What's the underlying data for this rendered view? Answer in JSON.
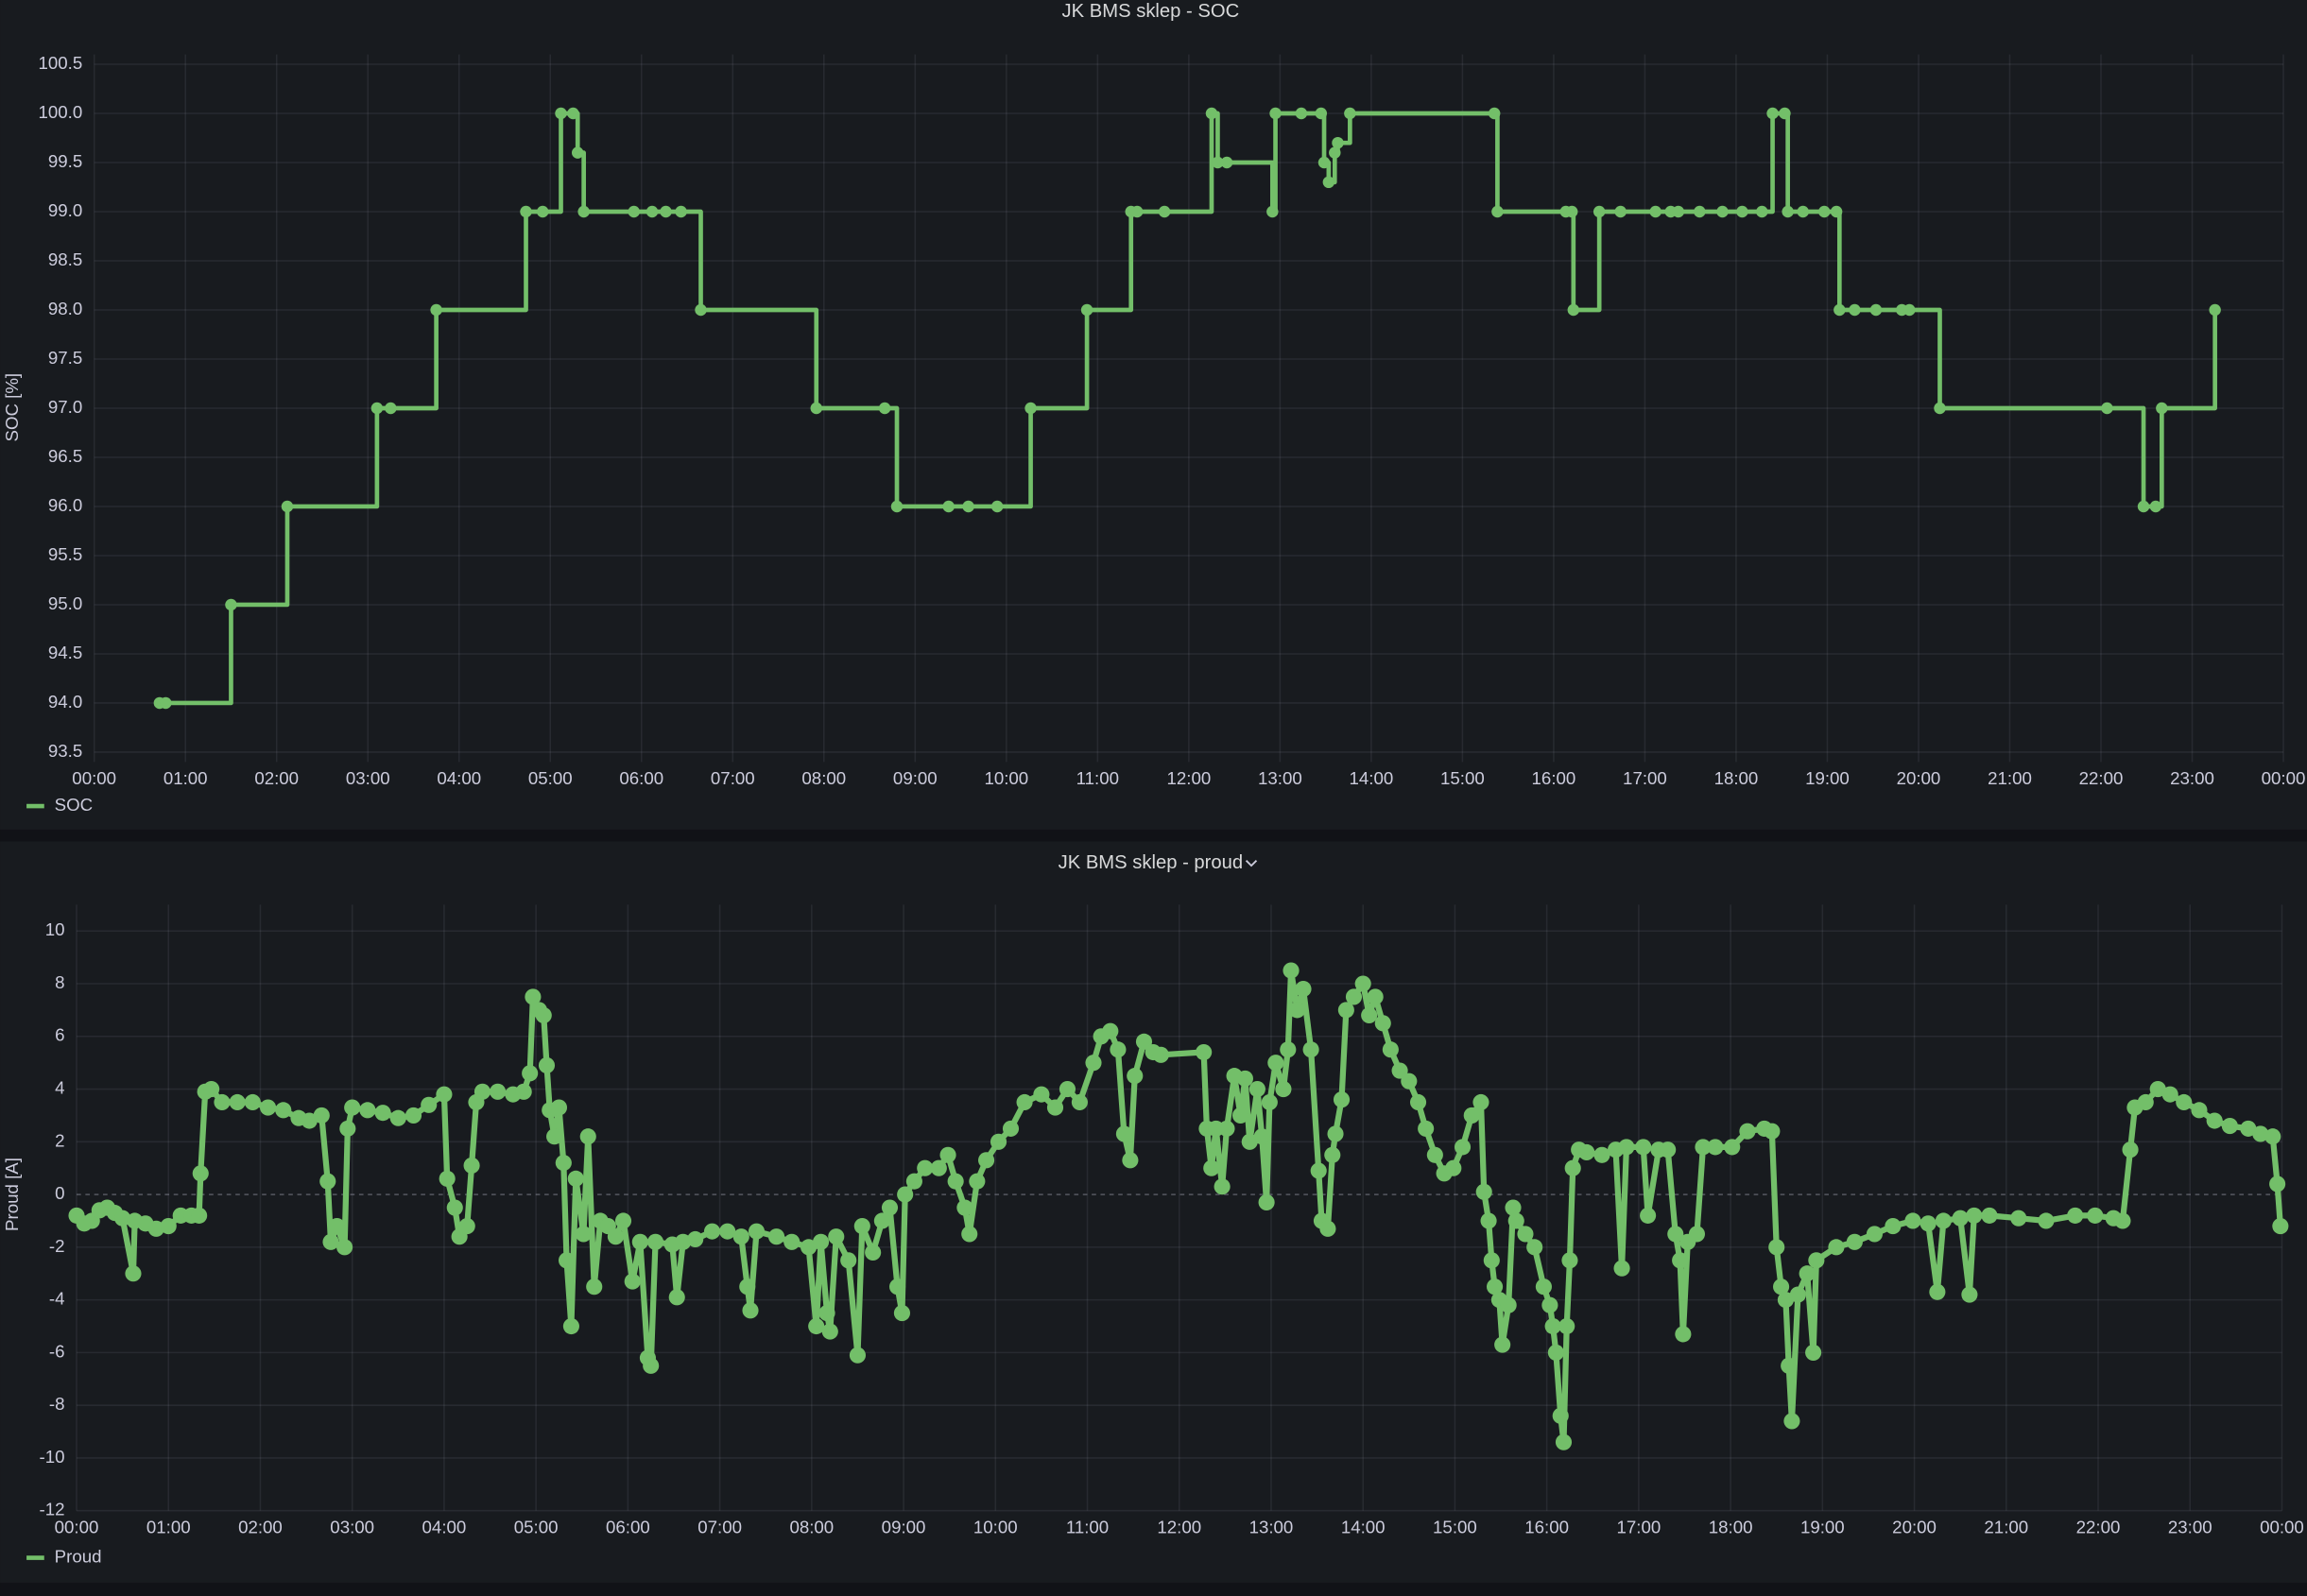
{
  "chart_data": [
    {
      "type": "line",
      "title": "JK BMS sklep - SOC",
      "ylabel": "SOC [%]",
      "interpolation": "stepAfter",
      "grid": true,
      "legend": "bottom-left",
      "xlim": [
        0,
        1440
      ],
      "xticks": [
        {
          "value": 0,
          "label": "00:00"
        },
        {
          "value": 60,
          "label": "01:00"
        },
        {
          "value": 120,
          "label": "02:00"
        },
        {
          "value": 180,
          "label": "03:00"
        },
        {
          "value": 240,
          "label": "04:00"
        },
        {
          "value": 300,
          "label": "05:00"
        },
        {
          "value": 360,
          "label": "06:00"
        },
        {
          "value": 420,
          "label": "07:00"
        },
        {
          "value": 480,
          "label": "08:00"
        },
        {
          "value": 540,
          "label": "09:00"
        },
        {
          "value": 600,
          "label": "10:00"
        },
        {
          "value": 660,
          "label": "11:00"
        },
        {
          "value": 720,
          "label": "12:00"
        },
        {
          "value": 780,
          "label": "13:00"
        },
        {
          "value": 840,
          "label": "14:00"
        },
        {
          "value": 900,
          "label": "15:00"
        },
        {
          "value": 960,
          "label": "16:00"
        },
        {
          "value": 1020,
          "label": "17:00"
        },
        {
          "value": 1080,
          "label": "18:00"
        },
        {
          "value": 1140,
          "label": "19:00"
        },
        {
          "value": 1200,
          "label": "20:00"
        },
        {
          "value": 1260,
          "label": "21:00"
        },
        {
          "value": 1320,
          "label": "22:00"
        },
        {
          "value": 1380,
          "label": "23:00"
        },
        {
          "value": 1440,
          "label": "00:00"
        }
      ],
      "ylim": [
        93.4,
        100.6
      ],
      "yticks": [
        93.5,
        {
          "value": 94,
          "label": "94.0"
        },
        94.5,
        {
          "value": 95,
          "label": "95.0"
        },
        95.5,
        {
          "value": 96,
          "label": "96.0"
        },
        96.5,
        {
          "value": 97,
          "label": "97.0"
        },
        97.5,
        {
          "value": 98,
          "label": "98.0"
        },
        98.5,
        {
          "value": 99,
          "label": "99.0"
        },
        99.5,
        {
          "value": 100,
          "label": "100.0"
        },
        100.5
      ],
      "x": [
        43,
        47,
        90,
        127,
        186,
        195,
        225,
        284,
        295,
        307,
        315,
        318,
        322,
        355,
        367,
        376,
        386,
        399,
        475,
        520,
        528,
        562,
        575,
        594,
        616,
        653,
        682,
        686,
        704,
        735,
        739,
        745,
        775,
        777,
        794,
        807,
        809,
        812,
        816,
        818,
        826,
        921,
        923,
        968,
        972,
        973,
        990,
        1004,
        1027,
        1037,
        1042,
        1056,
        1071,
        1084,
        1097,
        1104,
        1112,
        1114,
        1124,
        1138,
        1146,
        1148,
        1158,
        1172,
        1189,
        1194,
        1214,
        1324,
        1348,
        1356,
        1360,
        1395
      ],
      "series": [
        {
          "name": "SOC",
          "color": "#73bf69",
          "values": [
            94,
            94,
            95,
            96,
            97,
            97,
            98,
            99,
            99,
            100,
            100,
            99.6,
            99,
            99,
            99,
            99,
            99,
            98,
            97,
            97,
            96,
            96,
            96,
            96,
            97,
            98,
            99,
            99,
            99,
            100,
            99.5,
            99.5,
            99,
            100,
            100,
            100,
            99.5,
            99.3,
            99.6,
            99.7,
            100,
            100,
            99,
            99,
            99,
            98,
            99,
            99,
            99,
            99,
            99,
            99,
            99,
            99,
            99,
            100,
            100,
            99,
            99,
            99,
            99,
            98,
            98,
            98,
            98,
            98,
            97,
            97,
            96,
            96,
            97,
            98
          ]
        }
      ]
    },
    {
      "type": "line",
      "title": "JK BMS sklep - proud",
      "ylabel": "Proud [A]",
      "interpolation": "linear",
      "grid": true,
      "legend": "bottom-left",
      "xlim": [
        0,
        1440
      ],
      "xticks": [
        {
          "value": 0,
          "label": "00:00"
        },
        {
          "value": 60,
          "label": "01:00"
        },
        {
          "value": 120,
          "label": "02:00"
        },
        {
          "value": 180,
          "label": "03:00"
        },
        {
          "value": 240,
          "label": "04:00"
        },
        {
          "value": 300,
          "label": "05:00"
        },
        {
          "value": 360,
          "label": "06:00"
        },
        {
          "value": 420,
          "label": "07:00"
        },
        {
          "value": 480,
          "label": "08:00"
        },
        {
          "value": 540,
          "label": "09:00"
        },
        {
          "value": 600,
          "label": "10:00"
        },
        {
          "value": 660,
          "label": "11:00"
        },
        {
          "value": 720,
          "label": "12:00"
        },
        {
          "value": 780,
          "label": "13:00"
        },
        {
          "value": 840,
          "label": "14:00"
        },
        {
          "value": 900,
          "label": "15:00"
        },
        {
          "value": 960,
          "label": "16:00"
        },
        {
          "value": 1020,
          "label": "17:00"
        },
        {
          "value": 1080,
          "label": "18:00"
        },
        {
          "value": 1140,
          "label": "19:00"
        },
        {
          "value": 1200,
          "label": "20:00"
        },
        {
          "value": 1260,
          "label": "21:00"
        },
        {
          "value": 1320,
          "label": "22:00"
        },
        {
          "value": 1380,
          "label": "23:00"
        },
        {
          "value": 1440,
          "label": "00:00"
        }
      ],
      "ylim": [
        -12,
        11
      ],
      "yticks": [
        -12,
        -10,
        -8,
        -6,
        -4,
        -2,
        0,
        2,
        4,
        6,
        8,
        10
      ],
      "x": [
        0,
        5,
        10,
        15,
        20,
        25,
        30,
        37,
        38,
        45,
        52,
        60,
        68,
        75,
        80,
        81,
        84,
        88,
        95,
        105,
        115,
        125,
        135,
        145,
        152,
        160,
        164,
        166,
        170,
        175,
        177,
        180,
        190,
        200,
        210,
        220,
        230,
        240,
        242,
        247,
        250,
        255,
        258,
        261,
        265,
        275,
        285,
        292,
        296,
        298,
        302,
        305,
        307,
        309,
        312,
        315,
        318,
        320,
        323,
        326,
        331,
        334,
        338,
        342,
        347,
        352,
        357,
        363,
        368,
        373,
        375,
        378,
        389,
        392,
        396,
        404,
        415,
        425,
        434,
        438,
        440,
        444,
        457,
        467,
        478,
        483,
        486,
        490,
        492,
        496,
        504,
        510,
        513,
        520,
        526,
        531,
        536,
        539,
        541,
        547,
        554,
        563,
        569,
        574,
        580,
        583,
        588,
        594,
        602,
        610,
        619,
        630,
        639,
        647,
        655,
        664,
        669,
        675,
        680,
        684,
        688,
        691,
        697,
        703,
        708,
        736,
        738,
        741,
        744,
        748,
        751,
        756,
        760,
        763,
        766,
        771,
        774,
        777,
        779,
        783,
        788,
        791,
        793,
        797,
        801,
        806,
        811,
        813,
        817,
        820,
        822,
        826,
        829,
        834,
        840,
        844,
        848,
        853,
        858,
        864,
        870,
        876,
        881,
        887,
        893,
        899,
        905,
        911,
        917,
        919,
        922,
        924,
        926,
        929,
        931,
        935,
        938,
        940,
        946,
        952,
        958,
        962,
        964,
        966,
        969,
        971,
        973,
        975,
        977,
        981,
        986,
        996,
        1005,
        1009,
        1012,
        1023,
        1026,
        1033,
        1039,
        1044,
        1047,
        1049,
        1052,
        1058,
        1062,
        1070,
        1081,
        1091,
        1102,
        1107,
        1110,
        1113,
        1116,
        1118,
        1120,
        1124,
        1130,
        1134,
        1136,
        1149,
        1161,
        1174,
        1186,
        1199,
        1209,
        1215,
        1219,
        1230,
        1236,
        1239,
        1249,
        1268,
        1286,
        1305,
        1318,
        1330,
        1336,
        1341,
        1344,
        1351,
        1359,
        1367,
        1376,
        1386,
        1396,
        1406,
        1418,
        1426,
        1434,
        1437,
        1439
      ],
      "series": [
        {
          "name": "Proud",
          "color": "#73bf69",
          "values": [
            -0.8,
            -1.1,
            -1.0,
            -0.6,
            -0.5,
            -0.7,
            -0.9,
            -3.0,
            -1.0,
            -1.1,
            -1.3,
            -1.2,
            -0.8,
            -0.8,
            -0.8,
            0.8,
            3.9,
            4.0,
            3.5,
            3.5,
            3.5,
            3.3,
            3.2,
            2.9,
            2.8,
            3.0,
            0.5,
            -1.8,
            -1.2,
            -2.0,
            2.5,
            3.3,
            3.2,
            3.1,
            2.9,
            3.0,
            3.4,
            3.8,
            0.6,
            -0.5,
            -1.6,
            -1.2,
            1.1,
            3.5,
            3.9,
            3.9,
            3.8,
            3.9,
            4.6,
            7.5,
            7.0,
            6.8,
            4.9,
            3.2,
            2.2,
            3.3,
            1.2,
            -2.5,
            -5.0,
            0.6,
            -1.5,
            2.2,
            -3.5,
            -1.0,
            -1.2,
            -1.6,
            -1.0,
            -3.3,
            -1.8,
            -6.2,
            -6.5,
            -1.8,
            -1.9,
            -3.9,
            -1.8,
            -1.7,
            -1.4,
            -1.4,
            -1.6,
            -3.5,
            -4.4,
            -1.4,
            -1.6,
            -1.8,
            -2.0,
            -5.0,
            -1.8,
            -4.5,
            -5.2,
            -1.6,
            -2.5,
            -6.1,
            -1.2,
            -2.2,
            -1.0,
            -0.5,
            -3.5,
            -4.5,
            0.0,
            0.5,
            1.0,
            1.0,
            1.5,
            0.5,
            -0.5,
            -1.5,
            0.5,
            1.3,
            2.0,
            2.5,
            3.5,
            3.8,
            3.3,
            4.0,
            3.5,
            5.0,
            6.0,
            6.2,
            5.5,
            2.3,
            1.3,
            4.5,
            5.8,
            5.4,
            5.3,
            5.4,
            2.5,
            1.0,
            2.5,
            0.3,
            2.5,
            4.5,
            3.0,
            4.4,
            2.0,
            4.0,
            2.2,
            -0.3,
            3.5,
            5.0,
            4.0,
            5.5,
            8.5,
            7.0,
            7.8,
            5.5,
            0.9,
            -1.0,
            -1.3,
            1.5,
            2.3,
            3.6,
            7.0,
            7.5,
            8.0,
            6.8,
            7.5,
            6.5,
            5.5,
            4.7,
            4.3,
            3.5,
            2.5,
            1.5,
            0.8,
            1.0,
            1.8,
            3.0,
            3.5,
            0.1,
            -1.0,
            -2.5,
            -3.5,
            -4.0,
            -5.7,
            -4.2,
            -0.5,
            -1.0,
            -1.5,
            -2.0,
            -3.5,
            -4.2,
            -5.0,
            -6.0,
            -8.4,
            -9.4,
            -5.0,
            -2.5,
            1.0,
            1.7,
            1.6,
            1.5,
            1.7,
            -2.8,
            1.8,
            1.8,
            -0.8,
            1.7,
            1.7,
            -1.5,
            -2.5,
            -5.3,
            -1.8,
            -1.5,
            1.8,
            1.8,
            1.8,
            2.4,
            2.5,
            2.4,
            -2.0,
            -3.5,
            -4.0,
            -6.5,
            -8.6,
            -3.8,
            -3.0,
            -6.0,
            -2.5,
            -2.0,
            -1.8,
            -1.5,
            -1.2,
            -1.0,
            -1.1,
            -3.7,
            -1.0,
            -0.9,
            -3.8,
            -0.8,
            -0.8,
            -0.9,
            -1.0,
            -0.8,
            -0.8,
            -0.9,
            -1.0,
            1.7,
            3.3,
            3.5,
            4.0,
            3.8,
            3.5,
            3.2,
            2.8,
            2.6,
            2.5,
            2.3,
            2.2,
            0.4,
            -1.2
          ]
        }
      ]
    }
  ]
}
